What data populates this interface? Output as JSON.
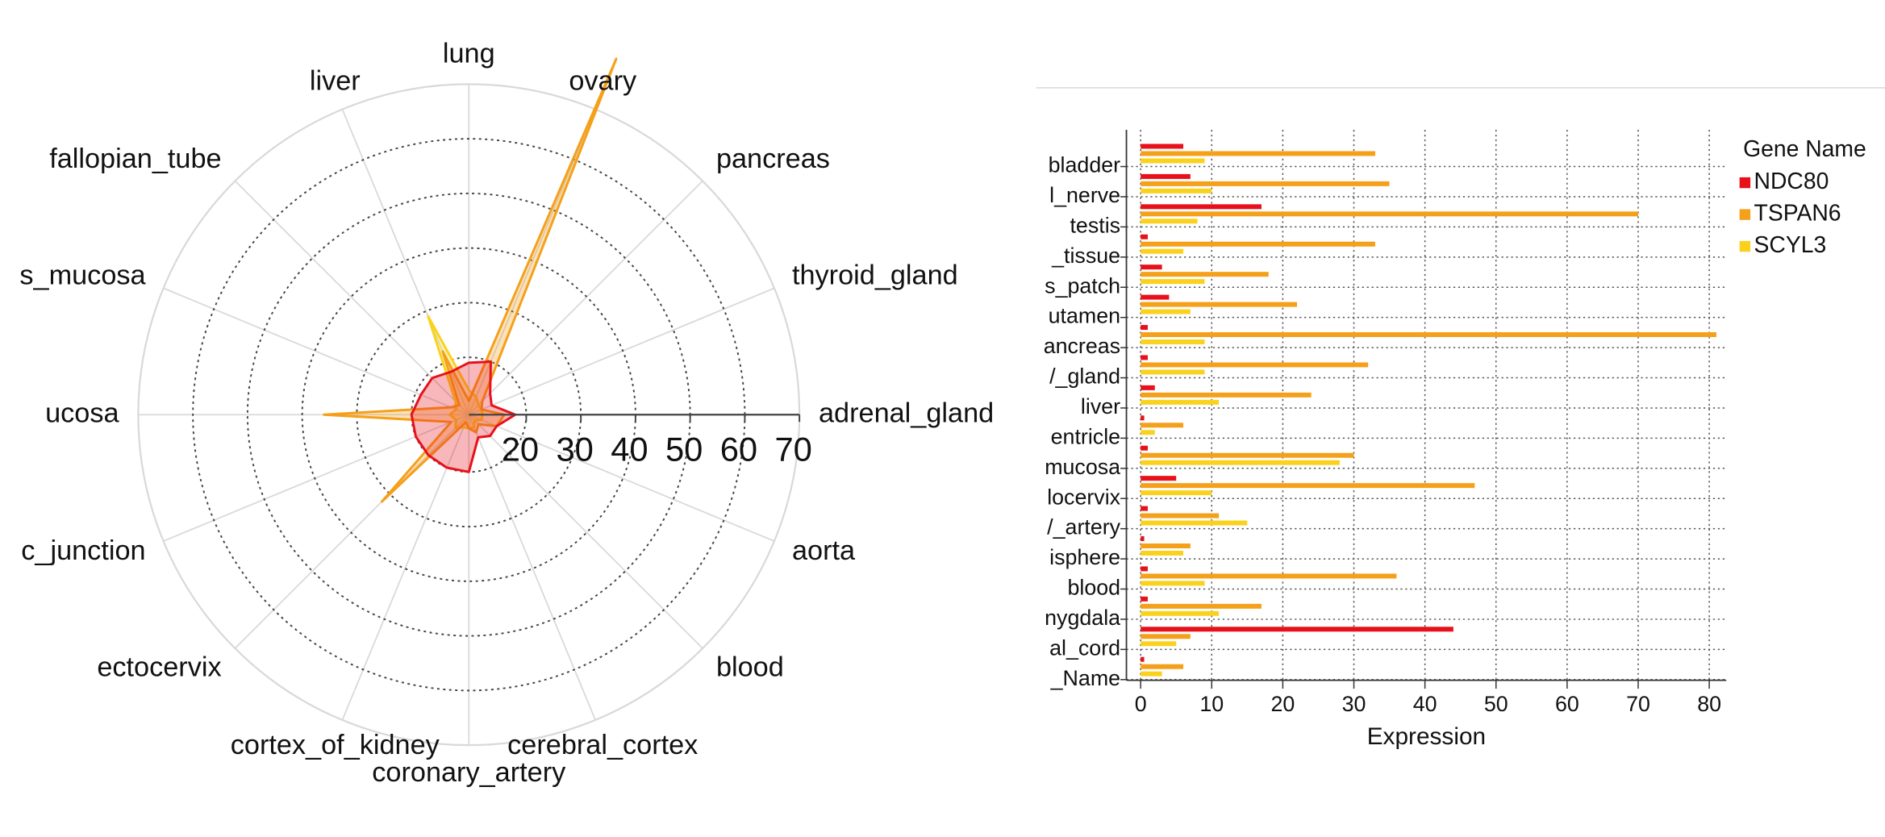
{
  "chart_data": [
    {
      "type": "radar",
      "categories": [
        "lung",
        "ovary",
        "pancreas",
        "thyroid_gland",
        "adrenal_gland",
        "aorta",
        "blood",
        "cerebral_cortex",
        "coronary_artery",
        "cortex_of_kidney",
        "ectocervix",
        "c_junction",
        "ucosa",
        "s_mucosa",
        "fallopian_tube",
        "liver"
      ],
      "rlim": [
        9.5,
        70
      ],
      "rticks": [
        20,
        30,
        40,
        50,
        60,
        70
      ],
      "grid": true,
      "series": [
        {
          "color": "#fad21e",
          "values": [
            14,
            13,
            12,
            12,
            12,
            12,
            11,
            12,
            12,
            12,
            13,
            12,
            13,
            12,
            13,
            29
          ]
        },
        {
          "color": "#f5a01a",
          "values": [
            12,
            80,
            13,
            12,
            16,
            15,
            12,
            13,
            12,
            11,
            32,
            13,
            36,
            13,
            12,
            22
          ]
        },
        {
          "color": "#e8101a",
          "values": [
            19,
            20,
            15,
            14,
            18,
            15,
            15,
            14,
            20,
            20,
            20,
            20,
            20,
            19,
            19,
            18
          ]
        }
      ]
    },
    {
      "type": "hbar",
      "categories": [
        "bladder",
        "l_nerve",
        "testis",
        "_tissue",
        "s_patch",
        "utamen",
        "ancreas",
        "/_gland",
        "liver",
        "entricle",
        "mucosa",
        "locervix",
        "/_artery",
        "isphere",
        "blood",
        "nygdala",
        "al_cord",
        "_Name"
      ],
      "xlabel": "Expression",
      "legend_title": "Gene Name",
      "xlim": [
        -2,
        82.4
      ],
      "xticks": [
        0,
        10,
        20,
        30,
        40,
        50,
        60,
        70,
        80
      ],
      "grid": true,
      "series": [
        {
          "name": "NDC80",
          "color": "#e8101a",
          "values": [
            6,
            7,
            17,
            1,
            3,
            4,
            1,
            1,
            2,
            0.5,
            1,
            5,
            1,
            0.5,
            1,
            1,
            44,
            0.5
          ]
        },
        {
          "name": "TSPAN6",
          "color": "#f5a01a",
          "values": [
            33,
            35,
            70,
            33,
            18,
            22,
            81,
            32,
            24,
            6,
            30,
            47,
            11,
            7,
            36,
            17,
            7,
            6
          ]
        },
        {
          "name": "SCYL3",
          "color": "#fad21e",
          "values": [
            9,
            10,
            8,
            6,
            9,
            7,
            9,
            9,
            11,
            2,
            28,
            10,
            15,
            6,
            9,
            11,
            5,
            3
          ]
        }
      ]
    }
  ]
}
